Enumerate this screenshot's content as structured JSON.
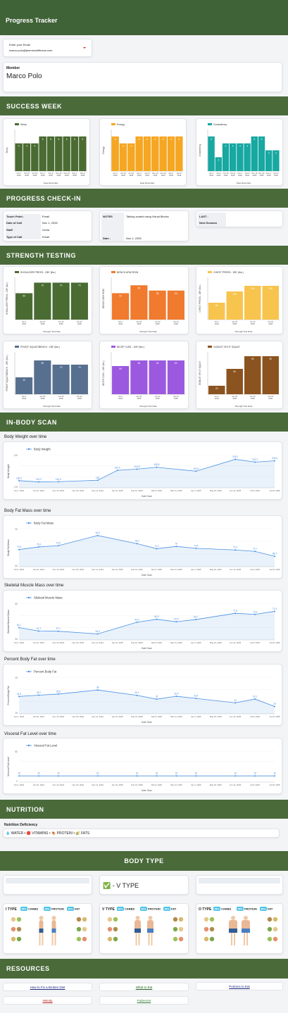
{
  "header": {
    "title": "Progress Tracker"
  },
  "email": {
    "label": "Enter your Email",
    "value": "marco.polo@jeremevelfitness.com"
  },
  "member": {
    "label": "Member",
    "name": "Marco Polo"
  },
  "sections": {
    "success_week": "SUCCESS WEEK",
    "progress_checkin": "PROGRESS CHECK-IN",
    "strength_testing": "STRENGTH TESTING",
    "inbody_scan": "IN-BODY SCAN",
    "nutrition": "NUTRITION",
    "body_type": "BODY TYPE",
    "resources": "RESOURCES"
  },
  "checkin": {
    "touch_point_label": "Touch Point -",
    "touch_point_value": "Email",
    "date_of_call_label": "Date of Call",
    "date_of_call_value": "Nov 1, 2028",
    "staff_label": "Staff",
    "staff_value": "Greta",
    "type_of_call_label": "Type of Call",
    "type_of_call_value": "Email",
    "notes_label": "NOTES",
    "notes_value": "Talking scaled using Visual Blocks",
    "date_label": "Date -",
    "date_value": "Nov 1, 2028",
    "last_label": "LAST -",
    "next_session_label": "Next Session"
  },
  "nutrition": {
    "label": "Nutrition Deficiency",
    "items_text": "💧 WATER • 🔴 VITAMINS • 🍖 PROTEIN • 🥑 FATS"
  },
  "body_type": {
    "selected": "✅ - V TYPE"
  },
  "body_type_cards": [
    {
      "type": "I TYPE",
      "carbs_pct": "55%",
      "protein_pct": "25%",
      "fat_pct": "20%",
      "carbs": "CARBS",
      "protein": "PROTEIN",
      "fat": "FAT"
    },
    {
      "type": "V TYPE",
      "carbs_pct": "40%",
      "protein_pct": "30%",
      "fat_pct": "30%",
      "carbs": "CARBS",
      "protein": "PROTEIN",
      "fat": "FAT"
    },
    {
      "type": "O TYPE",
      "carbs_pct": "25%",
      "protein_pct": "35%",
      "fat_pct": "40%",
      "carbs": "CARBS",
      "protein": "PROTEIN",
      "fat": "FAT"
    }
  ],
  "resources": {
    "link1": "How to Fix a Broken Diet",
    "link2": "What to Eat",
    "link3": "Portions to Eat",
    "link4": "InBody",
    "link5": "FatSecret"
  },
  "colors": {
    "band": "#4a6a3a",
    "sleep": "#4a6b32",
    "energy": "#f5a623",
    "consistency": "#17a8a1",
    "shoulder": "#4a6b32",
    "bench": "#f07a2e",
    "chest": "#f7c44e",
    "front": "#58708f",
    "bicep": "#9b59e0",
    "squat": "#8b5320",
    "line": "#4a90e2"
  },
  "chart_data": [
    {
      "id": "sleep",
      "type": "bar",
      "title": "",
      "legend": "Sleep",
      "ylabel": "Sleep",
      "xlabel": "Date Recorded",
      "categories": [
        "Oct 1, 2028",
        "Oct 15, 2028",
        "Oct 22, 2028",
        "Nov 1, 2028",
        "Nov 8, 2028",
        "Nov 15, 2028",
        "Nov 22, 2028",
        "Dec 1, 2028",
        "Dec 8, 2028"
      ],
      "values": [
        4,
        4,
        4,
        5,
        5,
        5,
        5,
        5,
        5
      ],
      "ylim": [
        0,
        6
      ]
    },
    {
      "id": "energy",
      "type": "bar",
      "title": "",
      "legend": "Energy",
      "ylabel": "Energy",
      "xlabel": "Date Recorded",
      "categories": [
        "Oct 1, 2028",
        "Oct 15, 2028",
        "Oct 22, 2028",
        "Nov 1, 2028",
        "Nov 8, 2028",
        "Nov 15, 2028",
        "Nov 22, 2028",
        "Dec 1, 2028",
        "Dec 8, 2028"
      ],
      "values": [
        5,
        4,
        4,
        5,
        5,
        5,
        5,
        5,
        5
      ],
      "ylim": [
        0,
        6
      ]
    },
    {
      "id": "consistency",
      "type": "bar",
      "title": "",
      "legend": "Consistency",
      "ylabel": "Consistency",
      "xlabel": "Date Recorded",
      "categories": [
        "Oct 1, 2028",
        "Oct 8, 2028",
        "Oct 15, 2028",
        "Oct 22, 2028",
        "Nov 1, 2028",
        "Nov 8, 2028",
        "Nov 15, 2028",
        "Nov 22, 2028",
        "Dec 1, 2028",
        "Dec 8, 2028"
      ],
      "values": [
        5,
        2,
        4,
        4,
        4,
        4,
        5,
        5,
        3,
        3
      ],
      "ylim": [
        0,
        6
      ]
    },
    {
      "id": "shoulder",
      "type": "bar",
      "legend": "SHOULDER PRESS - DB* (lbs.)",
      "ylabel": "SHOULDER PRESS - DB* (lbs.)",
      "xlabel": "Strength Test Date",
      "categories": [
        "Oct 1, 2028",
        "Apr 20, 2028",
        "Jun 22, 2028",
        "Oct 22, 2028"
      ],
      "values": [
        50,
        70,
        70,
        70
      ],
      "ylim": [
        0,
        80
      ]
    },
    {
      "id": "bench",
      "type": "bar",
      "legend": "BENCH ARM ROW",
      "ylabel": "BENCH ARM ROW",
      "xlabel": "Strength Test Date",
      "categories": [
        "Oct 1, 2028",
        "Apr 20, 2028",
        "Jun 22, 2028",
        "Oct 22, 2028"
      ],
      "values": [
        50,
        65,
        55,
        55
      ],
      "ylim": [
        0,
        80
      ]
    },
    {
      "id": "chest",
      "type": "bar",
      "legend": "CHEST PRESS - DB* (lbs.)",
      "ylabel": "CHEST PRESS - DB* (lbs.)",
      "xlabel": "Strength Test Date",
      "categories": [
        "Oct 1, 2028",
        "Apr 20, 2028",
        "Jun 22, 2028",
        "Oct 22, 2028"
      ],
      "values": [
        60,
        100,
        120,
        120
      ],
      "ylim": [
        0,
        150
      ]
    },
    {
      "id": "front",
      "type": "bar",
      "legend": "FRONT SQUAT/BENCH - DB* (lbs.)",
      "ylabel": "FRONT SQUAT/BENCH - DB* (lbs.)",
      "xlabel": "Strength Test Date",
      "categories": [
        "Oct 1, 2028",
        "Apr 20, 2028",
        "Jun 22, 2028",
        "Oct 22, 2028"
      ],
      "values": [
        40,
        80,
        70,
        70
      ],
      "ylim": [
        0,
        100
      ]
    },
    {
      "id": "bicep",
      "type": "bar",
      "legend": "BICEP CURL - DB* (lbs.)",
      "ylabel": "BICEP CURL - DB* (lbs.)",
      "xlabel": "Strength Test Date",
      "categories": [
        "Oct 1, 2028",
        "Apr 20, 2028",
        "Jun 22, 2028",
        "Oct 22, 2028"
      ],
      "values": [
        50,
        60,
        60,
        60
      ],
      "ylim": [
        0,
        75
      ]
    },
    {
      "id": "squat",
      "type": "bar",
      "legend": "GOBLET SPLIT SQUAT",
      "ylabel": "GOBLET SPLIT SQUAT",
      "xlabel": "Strength Test Date",
      "categories": [
        "Oct 1, 2028",
        "Apr 20, 2028",
        "Jun 22, 2028",
        "Oct 22, 2028"
      ],
      "values": [
        20,
        60,
        90,
        90
      ],
      "ylim": [
        0,
        100
      ]
    },
    {
      "id": "weight",
      "type": "area",
      "title": "Body Weight over time",
      "legend": "Body Weight",
      "ylabel": "Body Weight",
      "xlabel": "Date Scan",
      "categories": [
        "Oct 1, 2024",
        "Oct 22, 2024",
        "Nov 10, 2024",
        "Nov 26, 2024",
        "Dec 11, 2024",
        "Jan 16, 2025",
        "Feb 10, 2025",
        "Mar 8, 2025",
        "Mar 14, 2025",
        "Apr 4, 2025",
        "May 20, 2025",
        "Jun 14, 2025",
        "Jul 8, 2025",
        "Jul 20, 2025"
      ],
      "values": [
        182.6,
        181.3,
        181.5,
        null,
        183.0,
        193.5,
        194.8,
        196.8,
        null,
        192.6,
        null,
        205.2,
        202.3,
        203.6
      ],
      "ylim": [
        175,
        210
      ]
    },
    {
      "id": "fatmass",
      "type": "area",
      "title": "Body Fat Mass over time",
      "legend": "Body Fat Mass",
      "ylabel": "Body Fat Mass",
      "xlabel": "Date Scan",
      "categories": [
        "Oct 1, 2024",
        "Oct 22, 2024",
        "Nov 10, 2024",
        "Nov 26, 2024",
        "Dec 11, 2024",
        "Jan 16, 2025",
        "Feb 10, 2025",
        "Mar 8, 2025",
        "Mar 14, 2025",
        "Apr 4, 2025",
        "May 20, 2025",
        "Jun 14, 2025",
        "Jul 8, 2025",
        "Jul 20, 2025"
      ],
      "values": [
        73.5,
        75.6,
        76.6,
        null,
        84.6,
        null,
        78.2,
        74.2,
        76.0,
        74.5,
        null,
        73.2,
        72.1,
        68.2
      ],
      "ylim": [
        60,
        90
      ]
    },
    {
      "id": "muscle",
      "type": "area",
      "title": "Skeletal Muscle Mass over time",
      "legend": "Skeletal Muscle Mass",
      "ylabel": "Skeletal Muscle Mass",
      "xlabel": "Date Scan",
      "categories": [
        "Oct 1, 2024",
        "Oct 22, 2024",
        "Nov 10, 2024",
        "Nov 26, 2024",
        "Dec 11, 2024",
        "Jan 16, 2025",
        "Feb 10, 2025",
        "Mar 8, 2025",
        "Mar 14, 2025",
        "Apr 4, 2025",
        "May 20, 2025",
        "Jun 14, 2025",
        "Jul 8, 2025",
        "Jul 20, 2025"
      ],
      "values": [
        60.1,
        57.3,
        57.1,
        null,
        54.9,
        null,
        64.5,
        66.9,
        64.9,
        66.7,
        null,
        71.8,
        70.9,
        73.4
      ],
      "ylim": [
        50,
        80
      ]
    },
    {
      "id": "pbf",
      "type": "area",
      "title": "Percent Body Fat over time",
      "legend": "Percent Body Fat",
      "ylabel": "Percent Body Fat",
      "xlabel": "Date Scan",
      "categories": [
        "Oct 1, 2024",
        "Oct 22, 2024",
        "Nov 10, 2024",
        "Nov 26, 2024",
        "Dec 11, 2024",
        "Jan 16, 2025",
        "Feb 10, 2025",
        "Mar 8, 2025",
        "Mar 14, 2025",
        "Apr 4, 2025",
        "May 20, 2025",
        "Jun 14, 2025",
        "Jul 8, 2025",
        "Jul 20, 2025"
      ],
      "values": [
        34.5,
        35.2,
        35.8,
        null,
        38.0,
        null,
        35.1,
        33.0,
        34.6,
        33.4,
        null,
        31,
        33.1,
        29
      ],
      "ylim": [
        25,
        45
      ]
    },
    {
      "id": "visceral",
      "type": "line",
      "title": "Visceral Fat Level over time",
      "legend": "Visceral Fat Level",
      "ylabel": "Visceral Fat Level",
      "xlabel": "Date Scan",
      "categories": [
        "Oct 1, 2024",
        "Oct 22, 2024",
        "Nov 10, 2024",
        "Nov 26, 2024",
        "Dec 11, 2024",
        "Jan 16, 2025",
        "Feb 10, 2025",
        "Mar 8, 2025",
        "Mar 14, 2025",
        "Apr 4, 2025",
        "May 20, 2025",
        "Jun 14, 2025",
        "Jul 8, 2025",
        "Jul 20, 2025"
      ],
      "values": [
        16,
        16,
        16,
        null,
        16,
        null,
        16,
        16,
        16,
        16,
        null,
        16,
        16,
        16
      ],
      "ylim": [
        0,
        80
      ]
    }
  ]
}
